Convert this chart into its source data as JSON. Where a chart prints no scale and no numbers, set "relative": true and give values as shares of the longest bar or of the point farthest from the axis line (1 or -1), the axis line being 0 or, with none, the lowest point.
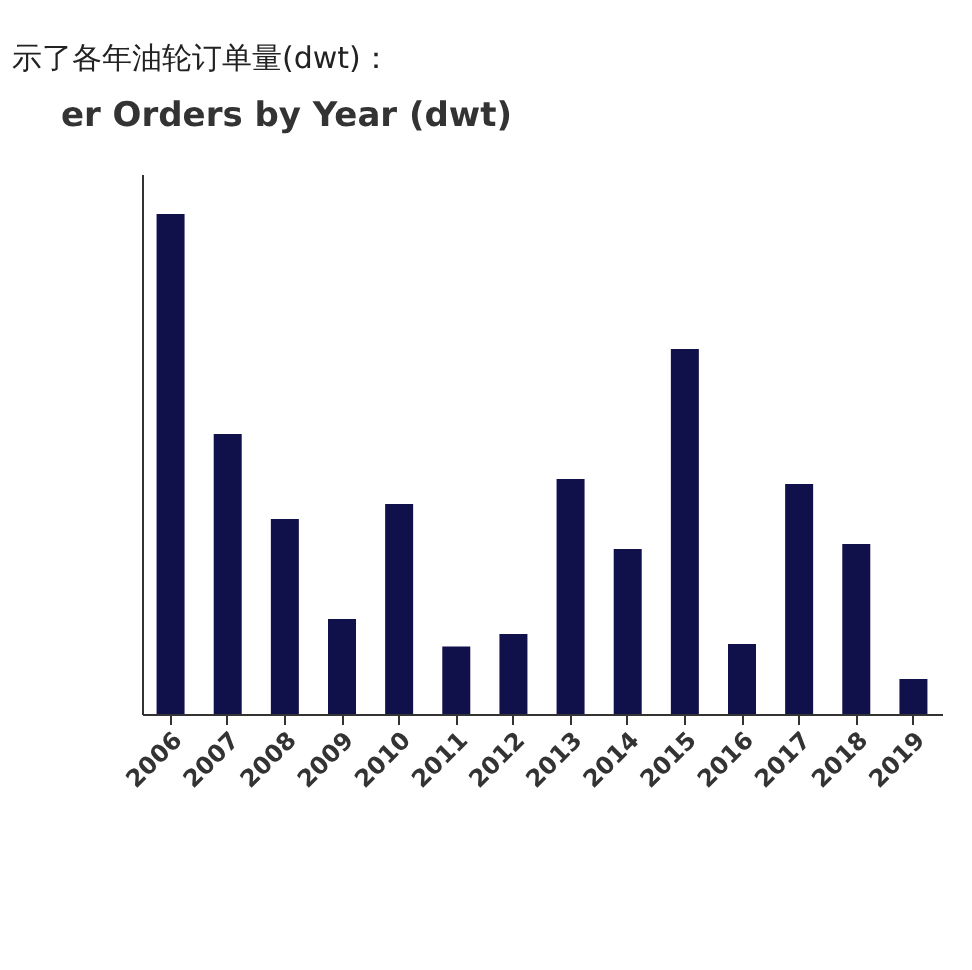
{
  "chart_data": {
    "type": "bar",
    "title": "er Orders by Year (dwt)",
    "annotations": [
      "示了各年油轮订单量(dwt)："
    ],
    "categories": [
      "2006",
      "2007",
      "2008",
      "2009",
      "2010",
      "2011",
      "2012",
      "2013",
      "2014",
      "2015",
      "2016",
      "2017",
      "2018",
      "2019"
    ],
    "values": [
      1,
      0.56,
      0.39,
      0.19,
      0.42,
      0.135,
      0.16,
      0.47,
      0.33,
      0.73,
      0.14,
      0.46,
      0.34,
      0.07
    ],
    "color": "#10104a",
    "relative": true
  }
}
